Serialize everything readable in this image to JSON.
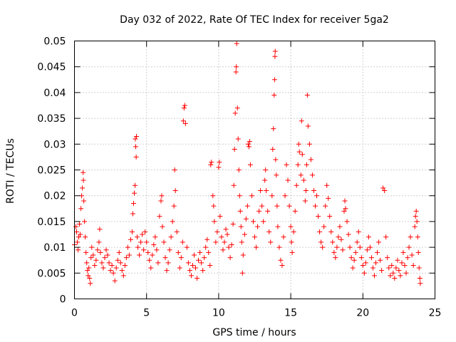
{
  "chart_data": {
    "type": "scatter",
    "title": "Day 032 of 2022, Rate Of TEC Index for receiver 5ga2",
    "xlabel": "GPS time / hours",
    "ylabel": "ROTI / TECUs",
    "xlim": [
      0,
      25
    ],
    "ylim": [
      0,
      0.05
    ],
    "xticks": [
      0,
      5,
      10,
      15,
      20,
      25
    ],
    "xtick_labels": [
      "0",
      "5",
      "10",
      "15",
      "20",
      "25"
    ],
    "yticks": [
      0,
      0.005,
      0.01,
      0.015,
      0.02,
      0.025,
      0.03,
      0.035,
      0.04,
      0.045,
      0.05
    ],
    "ytick_labels": [
      "0",
      "0.005",
      "0.01",
      "0.015",
      "0.02",
      "0.025",
      "0.03",
      "0.035",
      "0.04",
      "0.045",
      "0.05"
    ],
    "grid": true,
    "marker": "+",
    "color": "#ff0000",
    "series": [
      {
        "name": "ROTI",
        "points": [
          [
            0.0,
            0.0105
          ],
          [
            0.1,
            0.014
          ],
          [
            0.15,
            0.013
          ],
          [
            0.2,
            0.011
          ],
          [
            0.25,
            0.0095
          ],
          [
            0.3,
            0.012
          ],
          [
            0.35,
            0.0145
          ],
          [
            0.4,
            0.0125
          ],
          [
            0.45,
            0.0175
          ],
          [
            0.5,
            0.02
          ],
          [
            0.55,
            0.0215
          ],
          [
            0.6,
            0.0245
          ],
          [
            0.62,
            0.023
          ],
          [
            0.65,
            0.019
          ],
          [
            0.7,
            0.015
          ],
          [
            0.75,
            0.012
          ],
          [
            0.8,
            0.009
          ],
          [
            0.85,
            0.007
          ],
          [
            0.9,
            0.0055
          ],
          [
            0.95,
            0.0045
          ],
          [
            1.0,
            0.006
          ],
          [
            1.05,
            0.004
          ],
          [
            1.1,
            0.003
          ],
          [
            1.15,
            0.008
          ],
          [
            1.2,
            0.01
          ],
          [
            1.3,
            0.0085
          ],
          [
            1.4,
            0.0065
          ],
          [
            1.5,
            0.0075
          ],
          [
            1.6,
            0.0095
          ],
          [
            1.7,
            0.011
          ],
          [
            1.75,
            0.0135
          ],
          [
            1.8,
            0.009
          ],
          [
            1.9,
            0.007
          ],
          [
            2.0,
            0.006
          ],
          [
            2.1,
            0.008
          ],
          [
            2.2,
            0.0095
          ],
          [
            2.3,
            0.0085
          ],
          [
            2.4,
            0.007
          ],
          [
            2.5,
            0.0055
          ],
          [
            2.6,
            0.0065
          ],
          [
            2.7,
            0.005
          ],
          [
            2.8,
            0.0035
          ],
          [
            2.9,
            0.006
          ],
          [
            3.0,
            0.0075
          ],
          [
            3.1,
            0.009
          ],
          [
            3.2,
            0.007
          ],
          [
            3.3,
            0.0055
          ],
          [
            3.4,
            0.0045
          ],
          [
            3.5,
            0.0065
          ],
          [
            3.6,
            0.008
          ],
          [
            3.7,
            0.01
          ],
          [
            3.8,
            0.0085
          ],
          [
            3.9,
            0.0115
          ],
          [
            4.0,
            0.013
          ],
          [
            4.05,
            0.0165
          ],
          [
            4.1,
            0.0185
          ],
          [
            4.15,
            0.0205
          ],
          [
            4.2,
            0.022
          ],
          [
            4.22,
            0.031
          ],
          [
            4.25,
            0.0295
          ],
          [
            4.28,
            0.0275
          ],
          [
            4.3,
            0.0315
          ],
          [
            4.35,
            0.012
          ],
          [
            4.4,
            0.01
          ],
          [
            4.5,
            0.0085
          ],
          [
            4.6,
            0.011
          ],
          [
            4.7,
            0.0125
          ],
          [
            4.8,
            0.0095
          ],
          [
            4.9,
            0.013
          ],
          [
            5.0,
            0.011
          ],
          [
            5.1,
            0.009
          ],
          [
            5.2,
            0.0075
          ],
          [
            5.3,
            0.006
          ],
          [
            5.4,
            0.0085
          ],
          [
            5.5,
            0.0105
          ],
          [
            5.6,
            0.012
          ],
          [
            5.7,
            0.0095
          ],
          [
            5.8,
            0.007
          ],
          [
            5.9,
            0.016
          ],
          [
            6.0,
            0.019
          ],
          [
            6.05,
            0.02
          ],
          [
            6.1,
            0.014
          ],
          [
            6.2,
            0.011
          ],
          [
            6.3,
            0.008
          ],
          [
            6.4,
            0.0055
          ],
          [
            6.5,
            0.007
          ],
          [
            6.6,
            0.0095
          ],
          [
            6.7,
            0.012
          ],
          [
            6.8,
            0.015
          ],
          [
            6.9,
            0.018
          ],
          [
            6.95,
            0.025
          ],
          [
            7.0,
            0.021
          ],
          [
            7.1,
            0.013
          ],
          [
            7.2,
            0.009
          ],
          [
            7.3,
            0.006
          ],
          [
            7.4,
            0.008
          ],
          [
            7.5,
            0.011
          ],
          [
            7.55,
            0.0345
          ],
          [
            7.6,
            0.037
          ],
          [
            7.65,
            0.0375
          ],
          [
            7.7,
            0.034
          ],
          [
            7.8,
            0.01
          ],
          [
            7.9,
            0.007
          ],
          [
            8.0,
            0.0055
          ],
          [
            8.1,
            0.0045
          ],
          [
            8.2,
            0.0065
          ],
          [
            8.3,
            0.0085
          ],
          [
            8.4,
            0.006
          ],
          [
            8.5,
            0.004
          ],
          [
            8.6,
            0.0075
          ],
          [
            8.7,
            0.009
          ],
          [
            8.8,
            0.007
          ],
          [
            8.9,
            0.0055
          ],
          [
            9.0,
            0.008
          ],
          [
            9.1,
            0.01
          ],
          [
            9.2,
            0.0115
          ],
          [
            9.3,
            0.009
          ],
          [
            9.4,
            0.0065
          ],
          [
            9.45,
            0.026
          ],
          [
            9.5,
            0.0265
          ],
          [
            9.6,
            0.02
          ],
          [
            9.65,
            0.018
          ],
          [
            9.7,
            0.015
          ],
          [
            9.8,
            0.011
          ],
          [
            9.9,
            0.013
          ],
          [
            10.0,
            0.0255
          ],
          [
            10.05,
            0.0265
          ],
          [
            10.1,
            0.016
          ],
          [
            10.2,
            0.012
          ],
          [
            10.3,
            0.0095
          ],
          [
            10.4,
            0.011
          ],
          [
            10.5,
            0.0135
          ],
          [
            10.6,
            0.0125
          ],
          [
            10.7,
            0.01
          ],
          [
            10.8,
            0.008
          ],
          [
            10.9,
            0.0105
          ],
          [
            11.0,
            0.0145
          ],
          [
            11.05,
            0.022
          ],
          [
            11.1,
            0.029
          ],
          [
            11.15,
            0.036
          ],
          [
            11.2,
            0.044
          ],
          [
            11.22,
            0.045
          ],
          [
            11.25,
            0.0495
          ],
          [
            11.3,
            0.037
          ],
          [
            11.35,
            0.031
          ],
          [
            11.4,
            0.025
          ],
          [
            11.45,
            0.02
          ],
          [
            11.5,
            0.017
          ],
          [
            11.55,
            0.014
          ],
          [
            11.6,
            0.011
          ],
          [
            11.65,
            0.005
          ],
          [
            11.7,
            0.0085
          ],
          [
            11.8,
            0.0125
          ],
          [
            11.9,
            0.0155
          ],
          [
            12.0,
            0.018
          ],
          [
            12.05,
            0.03
          ],
          [
            12.1,
            0.0295
          ],
          [
            12.15,
            0.0305
          ],
          [
            12.2,
            0.026
          ],
          [
            12.3,
            0.02
          ],
          [
            12.4,
            0.015
          ],
          [
            12.5,
            0.012
          ],
          [
            12.6,
            0.01
          ],
          [
            12.7,
            0.014
          ],
          [
            12.8,
            0.017
          ],
          [
            12.9,
            0.021
          ],
          [
            13.0,
            0.018
          ],
          [
            13.1,
            0.015
          ],
          [
            13.2,
            0.023
          ],
          [
            13.25,
            0.025
          ],
          [
            13.3,
            0.021
          ],
          [
            13.4,
            0.017
          ],
          [
            13.5,
            0.013
          ],
          [
            13.6,
            0.011
          ],
          [
            13.7,
            0.02
          ],
          [
            13.75,
            0.029
          ],
          [
            13.8,
            0.033
          ],
          [
            13.85,
            0.0395
          ],
          [
            13.88,
            0.0425
          ],
          [
            13.9,
            0.047
          ],
          [
            13.92,
            0.048
          ],
          [
            13.95,
            0.027
          ],
          [
            14.0,
            0.024
          ],
          [
            14.05,
            0.018
          ],
          [
            14.1,
            0.014
          ],
          [
            14.2,
            0.01
          ],
          [
            14.3,
            0.0075
          ],
          [
            14.4,
            0.0065
          ],
          [
            14.5,
            0.012
          ],
          [
            14.6,
            0.02
          ],
          [
            14.7,
            0.026
          ],
          [
            14.8,
            0.023
          ],
          [
            14.9,
            0.018
          ],
          [
            15.0,
            0.014
          ],
          [
            15.05,
            0.011
          ],
          [
            15.1,
            0.009
          ],
          [
            15.2,
            0.013
          ],
          [
            15.3,
            0.017
          ],
          [
            15.4,
            0.022
          ],
          [
            15.5,
            0.026
          ],
          [
            15.55,
            0.03
          ],
          [
            15.6,
            0.0285
          ],
          [
            15.7,
            0.024
          ],
          [
            15.75,
            0.0345
          ],
          [
            15.8,
            0.028
          ],
          [
            15.9,
            0.023
          ],
          [
            16.0,
            0.019
          ],
          [
            16.05,
            0.021
          ],
          [
            16.1,
            0.026
          ],
          [
            16.15,
            0.0395
          ],
          [
            16.2,
            0.0335
          ],
          [
            16.3,
            0.03
          ],
          [
            16.4,
            0.027
          ],
          [
            16.5,
            0.024
          ],
          [
            16.6,
            0.021
          ],
          [
            16.7,
            0.018
          ],
          [
            16.8,
            0.02
          ],
          [
            16.9,
            0.016
          ],
          [
            17.0,
            0.013
          ],
          [
            17.1,
            0.011
          ],
          [
            17.2,
            0.01
          ],
          [
            17.3,
            0.014
          ],
          [
            17.4,
            0.018
          ],
          [
            17.5,
            0.022
          ],
          [
            17.6,
            0.0195
          ],
          [
            17.7,
            0.016
          ],
          [
            17.8,
            0.013
          ],
          [
            17.9,
            0.011
          ],
          [
            18.0,
            0.009
          ],
          [
            18.1,
            0.008
          ],
          [
            18.2,
            0.01
          ],
          [
            18.3,
            0.012
          ],
          [
            18.4,
            0.014
          ],
          [
            18.5,
            0.0115
          ],
          [
            18.6,
            0.0095
          ],
          [
            18.7,
            0.017
          ],
          [
            18.75,
            0.019
          ],
          [
            18.8,
            0.0175
          ],
          [
            18.9,
            0.015
          ],
          [
            19.0,
            0.0125
          ],
          [
            19.1,
            0.01
          ],
          [
            19.2,
            0.008
          ],
          [
            19.3,
            0.006
          ],
          [
            19.4,
            0.0075
          ],
          [
            19.5,
            0.009
          ],
          [
            19.6,
            0.011
          ],
          [
            19.7,
            0.013
          ],
          [
            19.8,
            0.01
          ],
          [
            19.9,
            0.008
          ],
          [
            20.0,
            0.0065
          ],
          [
            20.1,
            0.005
          ],
          [
            20.2,
            0.007
          ],
          [
            20.3,
            0.0095
          ],
          [
            20.4,
            0.012
          ],
          [
            20.5,
            0.01
          ],
          [
            20.6,
            0.008
          ],
          [
            20.7,
            0.006
          ],
          [
            20.8,
            0.0045
          ],
          [
            20.9,
            0.007
          ],
          [
            21.0,
            0.009
          ],
          [
            21.1,
            0.011
          ],
          [
            21.2,
            0.0075
          ],
          [
            21.3,
            0.0055
          ],
          [
            21.4,
            0.0215
          ],
          [
            21.5,
            0.021
          ],
          [
            21.6,
            0.012
          ],
          [
            21.7,
            0.008
          ],
          [
            21.8,
            0.006
          ],
          [
            21.9,
            0.0045
          ],
          [
            22.0,
            0.0065
          ],
          [
            22.1,
            0.005
          ],
          [
            22.2,
            0.004
          ],
          [
            22.3,
            0.006
          ],
          [
            22.4,
            0.0075
          ],
          [
            22.5,
            0.0055
          ],
          [
            22.6,
            0.0045
          ],
          [
            22.7,
            0.007
          ],
          [
            22.8,
            0.009
          ],
          [
            22.9,
            0.0065
          ],
          [
            23.0,
            0.005
          ],
          [
            23.1,
            0.008
          ],
          [
            23.2,
            0.01
          ],
          [
            23.3,
            0.012
          ],
          [
            23.4,
            0.0085
          ],
          [
            23.5,
            0.0065
          ],
          [
            23.6,
            0.014
          ],
          [
            23.65,
            0.016
          ],
          [
            23.7,
            0.017
          ],
          [
            23.75,
            0.015
          ],
          [
            23.8,
            0.012
          ],
          [
            23.85,
            0.009
          ],
          [
            23.9,
            0.006
          ],
          [
            23.95,
            0.004
          ],
          [
            23.98,
            0.003
          ]
        ]
      }
    ]
  }
}
